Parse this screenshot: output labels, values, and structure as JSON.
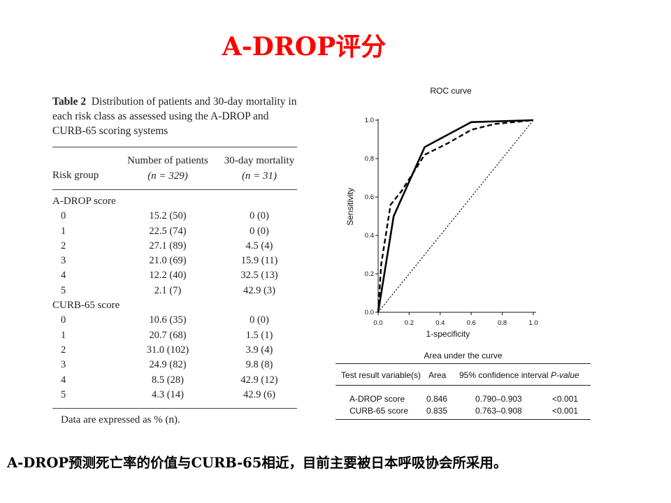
{
  "slide": {
    "title": "A-DROP评分",
    "note_latin": "A-DROP",
    "note_text1": "预测死亡率的价值与",
    "note_latin2": "CURB-65",
    "note_text2": "相近，目前主要被日本呼吸协会所采用。"
  },
  "table2": {
    "label": "Table 2",
    "caption": "Distribution of patients and 30-day mortality in each risk class as assessed using the A-DROP and CURB-65 scoring systems",
    "col_risk": "Risk group",
    "col_patients": "Number of patients",
    "col_patients_n": "(n = 329)",
    "col_mortality": "30-day mortality",
    "col_mortality_n": "(n = 31)",
    "sections": [
      {
        "name": "A-DROP score",
        "rows": [
          {
            "score": "0",
            "patients": "15.2 (50)",
            "mortality": "0 (0)"
          },
          {
            "score": "1",
            "patients": "22.5 (74)",
            "mortality": "0 (0)"
          },
          {
            "score": "2",
            "patients": "27.1 (89)",
            "mortality": "4.5 (4)"
          },
          {
            "score": "3",
            "patients": "21.0 (69)",
            "mortality": "15.9 (11)"
          },
          {
            "score": "4",
            "patients": "12.2 (40)",
            "mortality": "32.5 (13)"
          },
          {
            "score": "5",
            "patients": "2.1 (7)",
            "mortality": "42.9 (3)"
          }
        ]
      },
      {
        "name": "CURB-65 score",
        "rows": [
          {
            "score": "0",
            "patients": "10.6 (35)",
            "mortality": "0 (0)"
          },
          {
            "score": "1",
            "patients": "20.7 (68)",
            "mortality": "1.5 (1)"
          },
          {
            "score": "2",
            "patients": "31.0 (102)",
            "mortality": "3.9 (4)"
          },
          {
            "score": "3",
            "patients": "24.9 (82)",
            "mortality": "9.8 (8)"
          },
          {
            "score": "4",
            "patients": "8.5 (28)",
            "mortality": "42.9 (12)"
          },
          {
            "score": "5",
            "patients": "4.3 (14)",
            "mortality": "42.9 (6)"
          }
        ]
      }
    ],
    "footnote": "Data are expressed as % (n)."
  },
  "chart_data": {
    "type": "line",
    "title": "ROC curve",
    "xlabel": "1-specificity",
    "ylabel": "Sensitivity",
    "xlim": [
      0,
      1.0
    ],
    "ylim": [
      0,
      1.0
    ],
    "xticks": [
      "0.0",
      "0.2",
      "0.4",
      "0.6",
      "0.8",
      "1.0"
    ],
    "yticks": [
      "0.0",
      "0.2",
      "0.4",
      "0.6",
      "0.8",
      "1.0"
    ],
    "grid": false,
    "series": [
      {
        "style": "solid",
        "x": [
          0,
          0.1,
          0.3,
          0.6,
          1.0
        ],
        "y": [
          0,
          0.5,
          0.86,
          0.99,
          1.0
        ]
      },
      {
        "style": "dashed",
        "x": [
          0,
          0.02,
          0.08,
          0.15,
          0.3,
          0.45,
          0.6,
          0.75,
          1.0
        ],
        "y": [
          0,
          0.25,
          0.56,
          0.63,
          0.82,
          0.88,
          0.95,
          0.98,
          1.0
        ]
      },
      {
        "style": "dotted",
        "x": [
          0,
          1.0
        ],
        "y": [
          0,
          1.0
        ]
      }
    ]
  },
  "auc_table": {
    "caption": "Area under the curve",
    "headers": [
      "Test result variable(s)",
      "Area",
      "95% confidence interval",
      "P-value"
    ],
    "rows": [
      [
        "A-DROP score",
        "0.846",
        "0.790–0.903",
        "<0.001"
      ],
      [
        "CURB-65 score",
        "0.835",
        "0.763–0.908",
        "<0.001"
      ]
    ]
  }
}
